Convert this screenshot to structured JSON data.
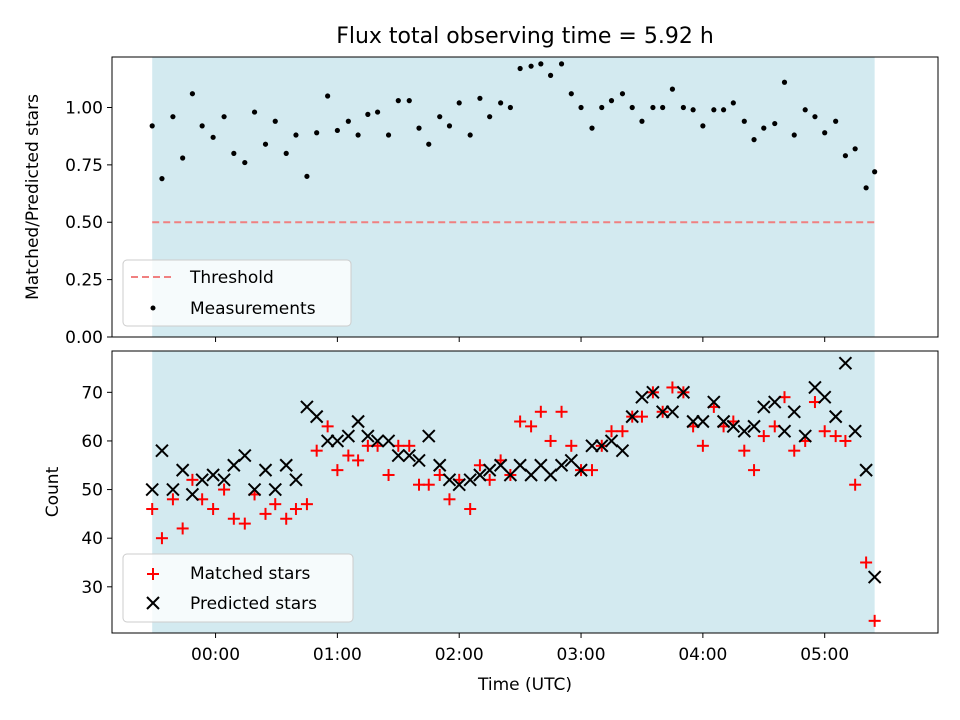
{
  "title": "Flux total observing time = 5.92 h",
  "xlabel": "Time (UTC)",
  "x_tick_labels": [
    "00:00",
    "01:00",
    "02:00",
    "03:00",
    "04:00",
    "05:00"
  ],
  "colors": {
    "span": "#d3eaf0",
    "threshold": "#f08080",
    "measurements": "#000000",
    "matched": "#ff0000",
    "predicted": "#000000"
  },
  "chart_data": [
    {
      "type": "scatter",
      "ylabel": "Matched/Predicted stars",
      "ylim": [
        0,
        1.22
      ],
      "xlim": [
        -0.85,
        5.93
      ],
      "y_ticks": [
        0.0,
        0.25,
        0.5,
        0.75,
        1.0
      ],
      "y_tick_labels": [
        "0.00",
        "0.25",
        "0.50",
        "0.75",
        "1.00"
      ],
      "shaded_span": [
        -0.52,
        5.41
      ],
      "legend_position": "lower-left",
      "threshold": {
        "name": "Threshold",
        "value": 0.5
      },
      "series": [
        {
          "name": "Measurements",
          "points": [
            [
              -0.52,
              0.92
            ],
            [
              -0.44,
              0.69
            ],
            [
              -0.35,
              0.96
            ],
            [
              -0.27,
              0.78
            ],
            [
              -0.19,
              1.06
            ],
            [
              -0.11,
              0.92
            ],
            [
              -0.02,
              0.87
            ],
            [
              0.07,
              0.96
            ],
            [
              0.15,
              0.8
            ],
            [
              0.24,
              0.76
            ],
            [
              0.32,
              0.98
            ],
            [
              0.41,
              0.84
            ],
            [
              0.49,
              0.94
            ],
            [
              0.58,
              0.8
            ],
            [
              0.66,
              0.88
            ],
            [
              0.75,
              0.7
            ],
            [
              0.83,
              0.89
            ],
            [
              0.92,
              1.05
            ],
            [
              1.0,
              0.9
            ],
            [
              1.09,
              0.94
            ],
            [
              1.17,
              0.88
            ],
            [
              1.25,
              0.97
            ],
            [
              1.33,
              0.98
            ],
            [
              1.42,
              0.88
            ],
            [
              1.5,
              1.03
            ],
            [
              1.59,
              1.03
            ],
            [
              1.67,
              0.91
            ],
            [
              1.75,
              0.84
            ],
            [
              1.84,
              0.96
            ],
            [
              1.92,
              0.92
            ],
            [
              2.0,
              1.02
            ],
            [
              2.09,
              0.88
            ],
            [
              2.17,
              1.04
            ],
            [
              2.25,
              0.96
            ],
            [
              2.34,
              1.02
            ],
            [
              2.42,
              1.0
            ],
            [
              2.5,
              1.17
            ],
            [
              2.59,
              1.18
            ],
            [
              2.67,
              1.19
            ],
            [
              2.75,
              1.14
            ],
            [
              2.84,
              1.19
            ],
            [
              2.92,
              1.06
            ],
            [
              3.0,
              1.0
            ],
            [
              3.09,
              0.91
            ],
            [
              3.17,
              1.0
            ],
            [
              3.25,
              1.03
            ],
            [
              3.34,
              1.06
            ],
            [
              3.42,
              1.0
            ],
            [
              3.5,
              0.94
            ],
            [
              3.59,
              1.0
            ],
            [
              3.67,
              1.0
            ],
            [
              3.75,
              1.08
            ],
            [
              3.84,
              1.0
            ],
            [
              3.92,
              0.99
            ],
            [
              4.0,
              0.92
            ],
            [
              4.09,
              0.99
            ],
            [
              4.17,
              0.99
            ],
            [
              4.25,
              1.02
            ],
            [
              4.34,
              0.94
            ],
            [
              4.42,
              0.86
            ],
            [
              4.5,
              0.91
            ],
            [
              4.59,
              0.93
            ],
            [
              4.67,
              1.11
            ],
            [
              4.75,
              0.88
            ],
            [
              4.84,
              0.99
            ],
            [
              4.92,
              0.96
            ],
            [
              5.0,
              0.89
            ],
            [
              5.09,
              0.94
            ],
            [
              5.17,
              0.79
            ],
            [
              5.25,
              0.82
            ],
            [
              5.34,
              0.65
            ],
            [
              5.41,
              0.72
            ]
          ]
        }
      ]
    },
    {
      "type": "scatter",
      "ylabel": "Count",
      "ylim": [
        20.5,
        78.5
      ],
      "xlim": [
        -0.85,
        5.93
      ],
      "y_ticks": [
        30,
        40,
        50,
        60,
        70
      ],
      "y_tick_labels": [
        "30",
        "40",
        "50",
        "60",
        "70"
      ],
      "shaded_span": [
        -0.52,
        5.41
      ],
      "legend_position": "lower-left",
      "series": [
        {
          "name": "Matched stars",
          "points": [
            [
              -0.52,
              46
            ],
            [
              -0.44,
              40
            ],
            [
              -0.35,
              48
            ],
            [
              -0.27,
              42
            ],
            [
              -0.19,
              52
            ],
            [
              -0.11,
              48
            ],
            [
              -0.02,
              46
            ],
            [
              0.07,
              50
            ],
            [
              0.15,
              44
            ],
            [
              0.24,
              43
            ],
            [
              0.32,
              49
            ],
            [
              0.41,
              45
            ],
            [
              0.49,
              47
            ],
            [
              0.58,
              44
            ],
            [
              0.66,
              46
            ],
            [
              0.75,
              47
            ],
            [
              0.83,
              58
            ],
            [
              0.92,
              63
            ],
            [
              1.0,
              54
            ],
            [
              1.09,
              57
            ],
            [
              1.17,
              56
            ],
            [
              1.25,
              59
            ],
            [
              1.33,
              59
            ],
            [
              1.42,
              53
            ],
            [
              1.5,
              59
            ],
            [
              1.59,
              59
            ],
            [
              1.67,
              51
            ],
            [
              1.75,
              51
            ],
            [
              1.84,
              53
            ],
            [
              1.92,
              48
            ],
            [
              2.0,
              52
            ],
            [
              2.09,
              46
            ],
            [
              2.17,
              55
            ],
            [
              2.25,
              52
            ],
            [
              2.34,
              56
            ],
            [
              2.42,
              53
            ],
            [
              2.5,
              64
            ],
            [
              2.59,
              63
            ],
            [
              2.67,
              66
            ],
            [
              2.75,
              60
            ],
            [
              2.84,
              66
            ],
            [
              2.92,
              59
            ],
            [
              3.0,
              54
            ],
            [
              3.09,
              54
            ],
            [
              3.17,
              59
            ],
            [
              3.25,
              62
            ],
            [
              3.34,
              62
            ],
            [
              3.42,
              65
            ],
            [
              3.5,
              65
            ],
            [
              3.59,
              70
            ],
            [
              3.67,
              66
            ],
            [
              3.75,
              71
            ],
            [
              3.84,
              70
            ],
            [
              3.92,
              63
            ],
            [
              4.0,
              59
            ],
            [
              4.09,
              67
            ],
            [
              4.17,
              63
            ],
            [
              4.25,
              64
            ],
            [
              4.34,
              58
            ],
            [
              4.42,
              54
            ],
            [
              4.5,
              61
            ],
            [
              4.59,
              63
            ],
            [
              4.67,
              69
            ],
            [
              4.75,
              58
            ],
            [
              4.84,
              60
            ],
            [
              4.92,
              68
            ],
            [
              5.0,
              62
            ],
            [
              5.09,
              61
            ],
            [
              5.17,
              60
            ],
            [
              5.25,
              51
            ],
            [
              5.34,
              35
            ],
            [
              5.41,
              23
            ]
          ]
        },
        {
          "name": "Predicted stars",
          "points": [
            [
              -0.52,
              50
            ],
            [
              -0.44,
              58
            ],
            [
              -0.35,
              50
            ],
            [
              -0.27,
              54
            ],
            [
              -0.19,
              49
            ],
            [
              -0.11,
              52
            ],
            [
              -0.02,
              53
            ],
            [
              0.07,
              52
            ],
            [
              0.15,
              55
            ],
            [
              0.24,
              57
            ],
            [
              0.32,
              50
            ],
            [
              0.41,
              54
            ],
            [
              0.49,
              50
            ],
            [
              0.58,
              55
            ],
            [
              0.66,
              52
            ],
            [
              0.75,
              67
            ],
            [
              0.83,
              65
            ],
            [
              0.92,
              60
            ],
            [
              1.0,
              60
            ],
            [
              1.09,
              61
            ],
            [
              1.17,
              64
            ],
            [
              1.25,
              61
            ],
            [
              1.33,
              60
            ],
            [
              1.42,
              60
            ],
            [
              1.5,
              57
            ],
            [
              1.59,
              57
            ],
            [
              1.67,
              56
            ],
            [
              1.75,
              61
            ],
            [
              1.84,
              55
            ],
            [
              1.92,
              52
            ],
            [
              2.0,
              51
            ],
            [
              2.09,
              52
            ],
            [
              2.17,
              53
            ],
            [
              2.25,
              54
            ],
            [
              2.34,
              55
            ],
            [
              2.42,
              53
            ],
            [
              2.5,
              55
            ],
            [
              2.59,
              53
            ],
            [
              2.67,
              55
            ],
            [
              2.75,
              53
            ],
            [
              2.84,
              55
            ],
            [
              2.92,
              56
            ],
            [
              3.0,
              54
            ],
            [
              3.09,
              59
            ],
            [
              3.17,
              59
            ],
            [
              3.25,
              60
            ],
            [
              3.34,
              58
            ],
            [
              3.42,
              65
            ],
            [
              3.5,
              69
            ],
            [
              3.59,
              70
            ],
            [
              3.67,
              66
            ],
            [
              3.75,
              66
            ],
            [
              3.84,
              70
            ],
            [
              3.92,
              64
            ],
            [
              4.0,
              64
            ],
            [
              4.09,
              68
            ],
            [
              4.17,
              64
            ],
            [
              4.25,
              63
            ],
            [
              4.34,
              62
            ],
            [
              4.42,
              63
            ],
            [
              4.5,
              67
            ],
            [
              4.59,
              68
            ],
            [
              4.67,
              62
            ],
            [
              4.75,
              66
            ],
            [
              4.84,
              61
            ],
            [
              4.92,
              71
            ],
            [
              5.0,
              69
            ],
            [
              5.09,
              65
            ],
            [
              5.17,
              76
            ],
            [
              5.25,
              62
            ],
            [
              5.34,
              54
            ],
            [
              5.41,
              32
            ]
          ]
        }
      ]
    }
  ]
}
